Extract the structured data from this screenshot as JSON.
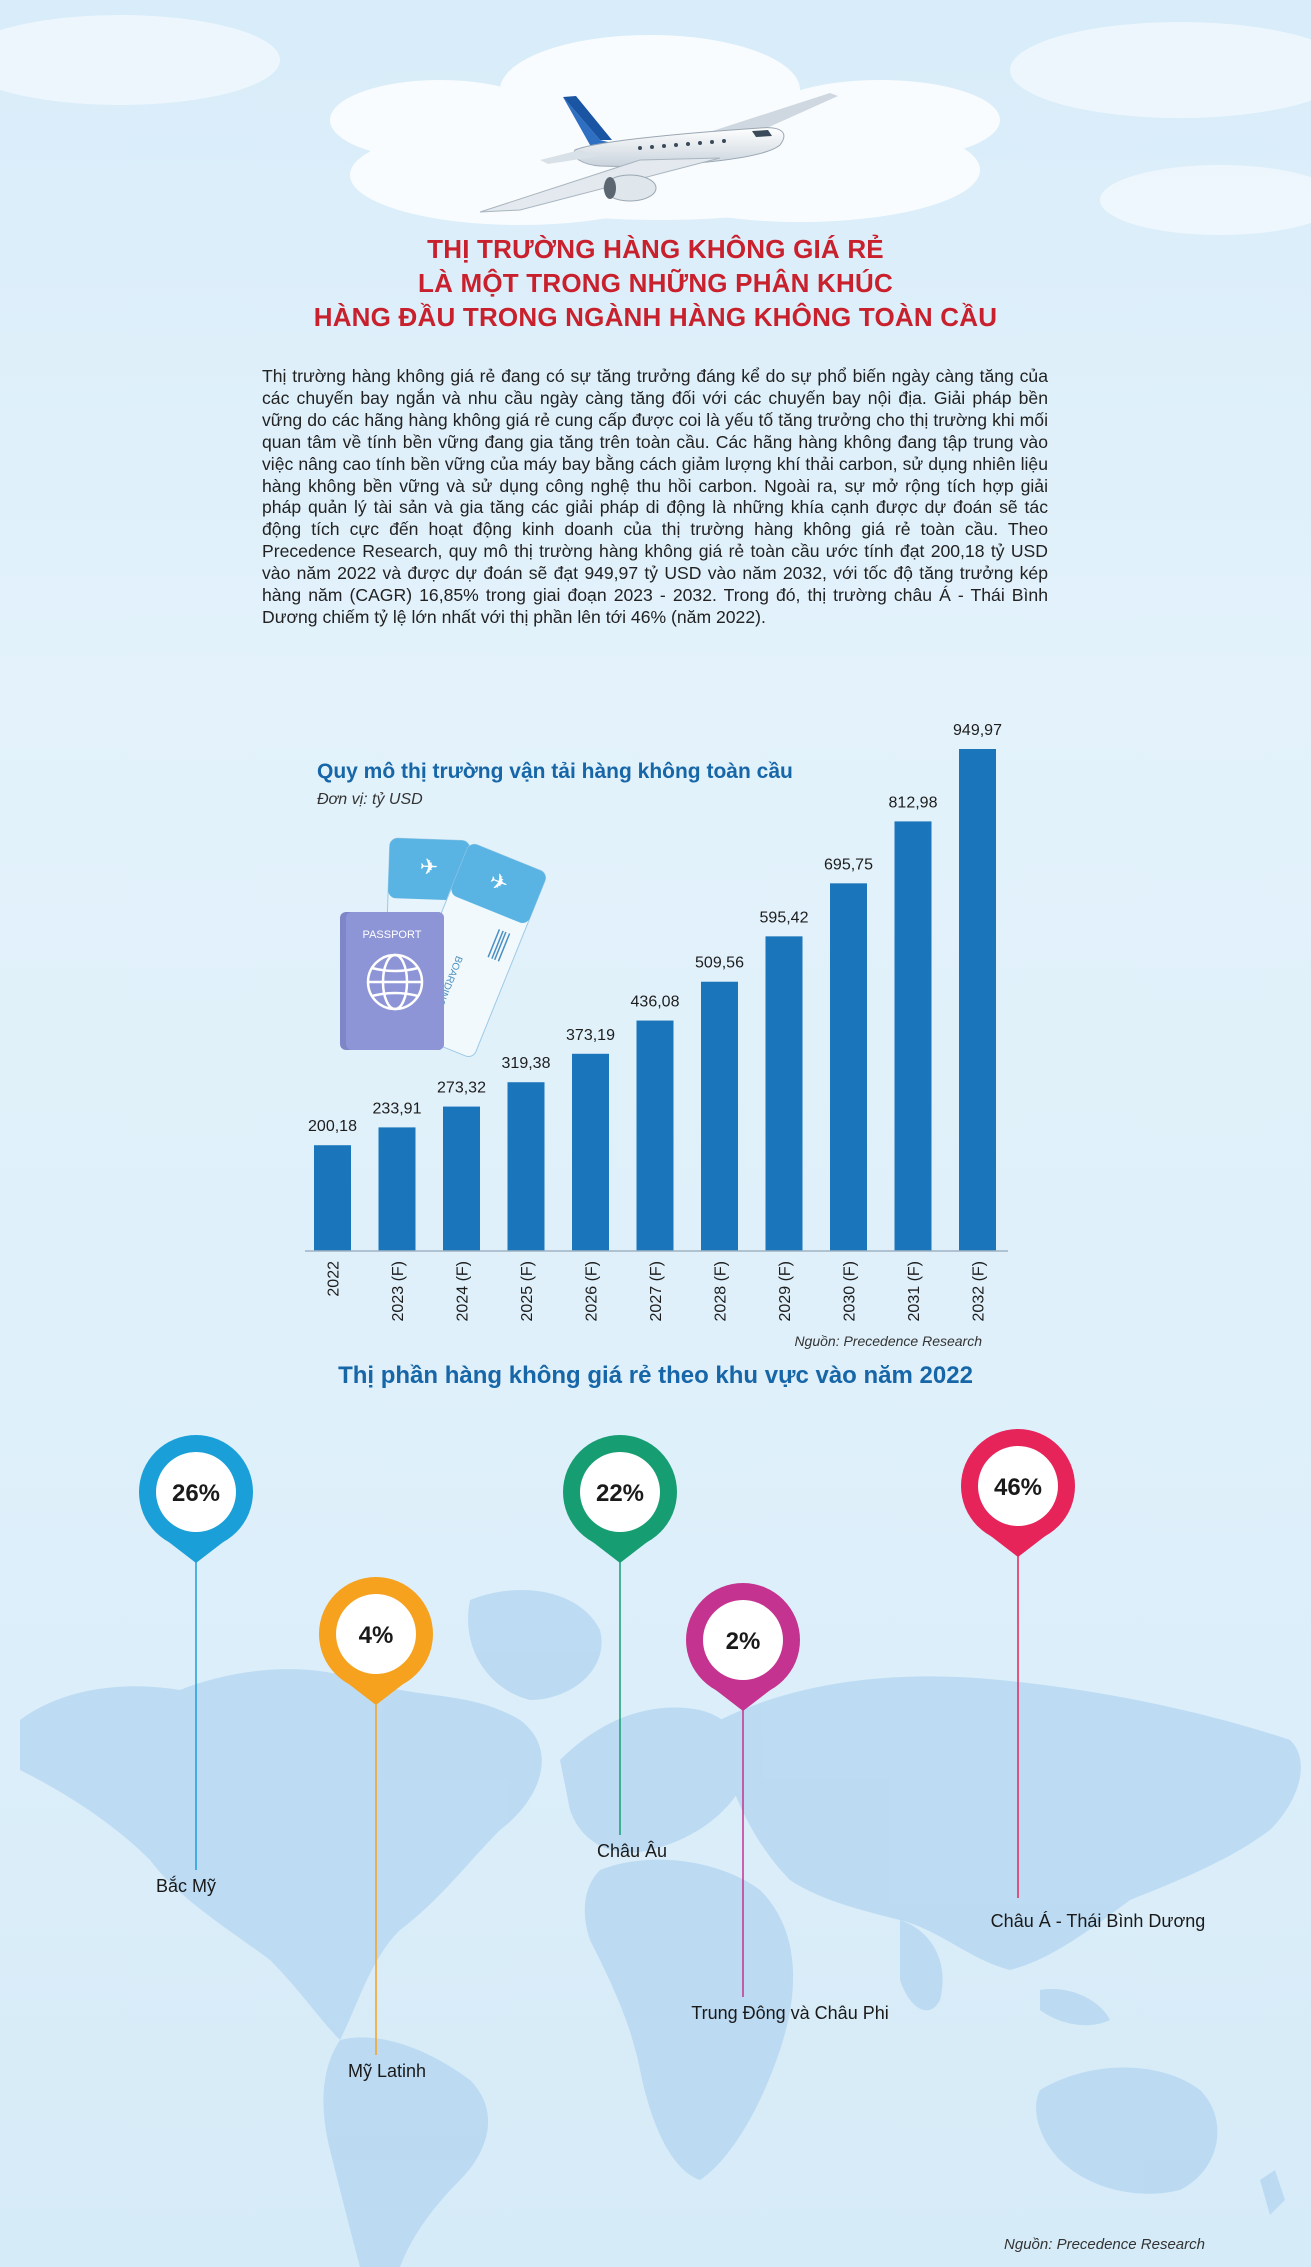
{
  "header": {
    "title_lines": [
      "THỊ TRƯỜNG HÀNG KHÔNG GIÁ RẺ",
      "LÀ MỘT TRONG NHỮNG PHÂN KHÚC",
      "HÀNG ĐẦU TRONG NGÀNH HÀNG KHÔNG TOÀN CẦU"
    ]
  },
  "intro_text": "Thị trường hàng không giá rẻ đang có sự tăng trưởng đáng kể do sự phổ biến ngày càng tăng của các chuyến bay ngắn và nhu cầu ngày càng tăng đối với các chuyến bay nội địa. Giải pháp bền vững do các hãng hàng không giá rẻ cung cấp được coi là yếu tố tăng trưởng cho thị trường khi mối quan tâm về tính bền vững đang gia tăng trên toàn cầu. Các hãng hàng không đang tập trung vào việc nâng cao tính bền vững của máy bay bằng cách giảm lượng khí thải carbon, sử dụng nhiên liệu hàng không bền vững và sử dụng công nghệ thu hồi carbon. Ngoài ra, sự mở rộng tích hợp giải pháp quản lý tài sản và gia tăng các giải pháp di động là những khía cạnh được dự đoán sẽ tác động tích cực đến hoạt động kinh doanh của thị trường hàng không giá rẻ toàn cầu. Theo Precedence Research, quy mô thị trường hàng không giá rẻ toàn cầu ước tính đạt 200,18 tỷ USD vào năm 2022 và được dự đoán sẽ đạt 949,97 tỷ USD vào năm 2032, với tốc độ tăng trưởng kép hàng năm (CAGR) 16,85% trong giai đoạn 2023 - 2032. Trong đó, thị trường châu Á - Thái Bình Dương chiếm tỷ lệ lớn nhất với thị phần lên tới 46% (năm 2022).",
  "chart_data": {
    "type": "bar",
    "title": "Quy mô thị trường vận tải hàng không toàn cầu",
    "unit": "Đơn vị: tỷ USD",
    "source": "Nguồn: Precedence Research",
    "categories": [
      "2022",
      "2023 (F)",
      "2024 (F)",
      "2025 (F)",
      "2026 (F)",
      "2027 (F)",
      "2028 (F)",
      "2029 (F)",
      "2030 (F)",
      "2031 (F)",
      "2032 (F)"
    ],
    "values": [
      200.18,
      233.91,
      273.32,
      319.38,
      373.19,
      436.08,
      509.56,
      595.42,
      695.75,
      812.98,
      949.97
    ],
    "value_labels": [
      "200,18",
      "233,91",
      "273,32",
      "319,38",
      "373,19",
      "436,08",
      "509,56",
      "595,42",
      "695,75",
      "812,98",
      "949,97"
    ],
    "ylim": [
      0,
      949.97
    ],
    "bar_color": "#1b75bb",
    "grid": false
  },
  "illustration": {
    "passport_text": "PASSPORT",
    "ticket_text": "BOARDING PASS"
  },
  "map": {
    "title": "Thị phần hàng không giá rẻ theo khu vực vào năm 2022",
    "source": "Nguồn: Precedence Research",
    "regions": [
      {
        "name": "Bắc Mỹ",
        "share": "26%",
        "color": "#1a9fd9"
      },
      {
        "name": "Mỹ Latinh",
        "share": "4%",
        "color": "#f6a21e"
      },
      {
        "name": "Châu Âu",
        "share": "22%",
        "color": "#169e72"
      },
      {
        "name": "Trung Đông và Châu Phi",
        "share": "2%",
        "color": "#c4338f"
      },
      {
        "name": "Châu Á - Thái Bình Dương",
        "share": "46%",
        "color": "#e6245a"
      }
    ]
  }
}
